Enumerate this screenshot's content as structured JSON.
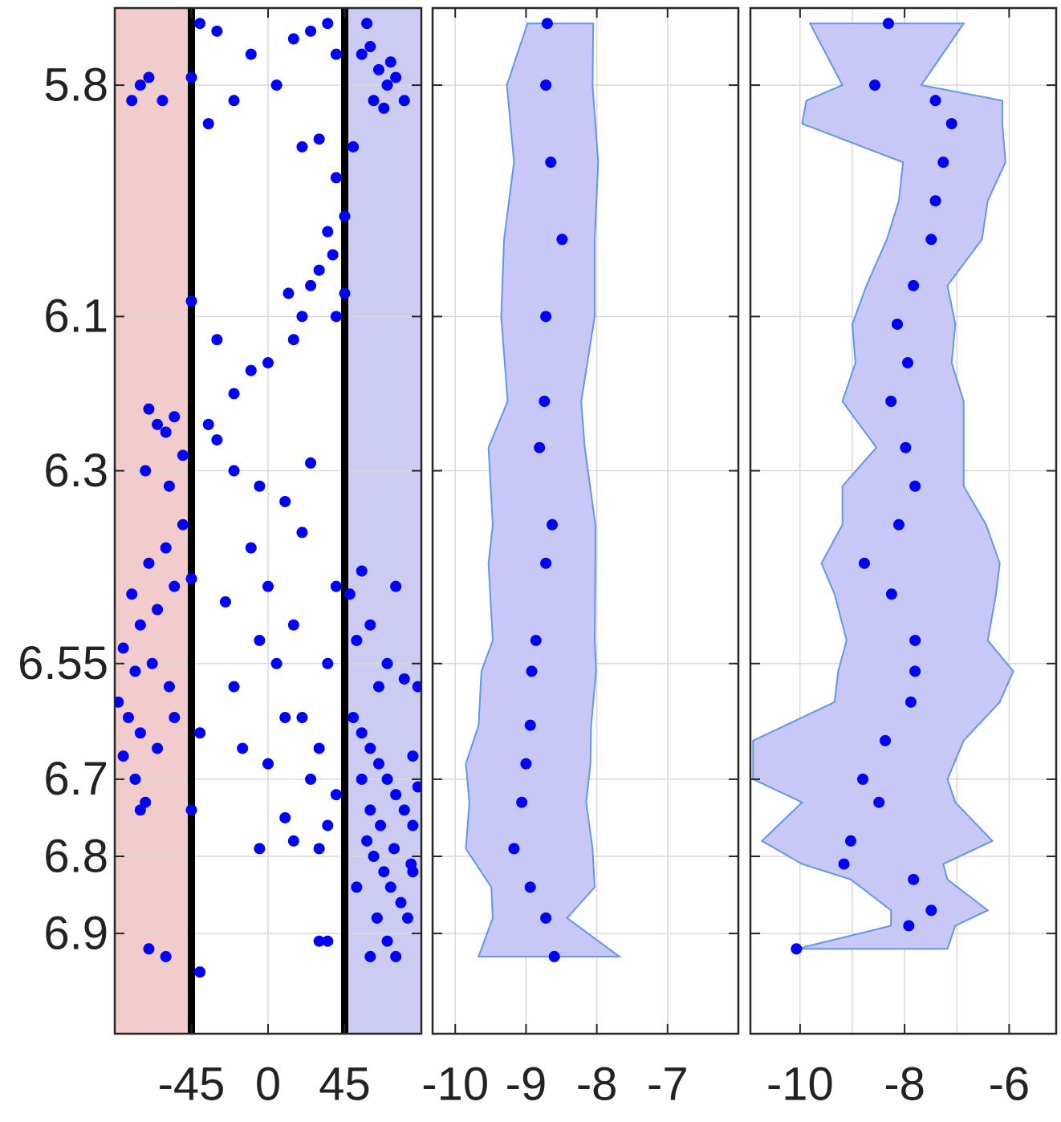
{
  "chart_data": [
    {
      "type": "scatter",
      "color": "#0000ff",
      "grid": true,
      "xlim": [
        -90,
        90
      ],
      "xticks": [
        -45,
        0,
        45
      ],
      "ylim": [
        5.7,
        7.03
      ],
      "yticks": [
        5.8,
        6.1,
        6.3,
        6.55,
        6.7,
        6.8,
        6.9
      ],
      "y_reversed": true,
      "shaded_regions": [
        {
          "from": -90,
          "to": -45,
          "color": "#f2cccc"
        },
        {
          "from": 45,
          "to": 90,
          "color": "#ccccf2"
        }
      ],
      "vlines": [
        -45,
        45
      ],
      "x": [
        60,
        65,
        70,
        62,
        75,
        68,
        55,
        80,
        58,
        72,
        -40,
        -30,
        -10,
        5,
        -20,
        -35,
        15,
        25,
        35,
        40,
        30,
        20,
        40,
        50,
        45,
        35,
        38,
        30,
        25,
        40,
        45,
        12,
        20,
        15,
        0,
        -10,
        -20,
        -35,
        -45,
        -75,
        -70,
        -80,
        -62,
        -30,
        -45,
        -70,
        -65,
        -60,
        -55,
        -72,
        -58,
        -50,
        -60,
        -70,
        -80,
        -75,
        -65,
        -55,
        -85,
        -78,
        -68,
        -58,
        -88,
        -82,
        -75,
        -65,
        -55,
        -78,
        -72,
        -75,
        -85,
        -70,
        -60,
        -50,
        -45,
        -30,
        -20,
        -5,
        10,
        20,
        -10,
        0,
        -25,
        15,
        -5,
        5,
        -20,
        10,
        -40,
        -15,
        0,
        20,
        30,
        25,
        10,
        -5,
        15,
        30,
        35,
        40,
        -45,
        -40,
        30,
        35,
        25,
        40,
        35,
        50,
        55,
        60,
        65,
        70,
        75,
        80,
        85,
        58,
        62,
        68,
        72,
        78,
        82,
        55,
        60,
        66,
        74,
        84,
        52,
        64,
        70,
        60,
        75,
        85,
        52,
        60,
        70,
        80,
        88,
        65,
        75,
        55,
        48,
        85,
        88
      ],
      "y": [
        5.75,
        5.78,
        5.8,
        5.82,
        5.79,
        5.83,
        5.76,
        5.82,
        5.72,
        5.77,
        5.72,
        5.73,
        5.76,
        5.8,
        5.82,
        5.85,
        5.74,
        5.73,
        5.72,
        5.76,
        5.87,
        5.88,
        5.92,
        5.88,
        5.97,
        5.99,
        6.02,
        6.04,
        6.06,
        6.1,
        6.07,
        6.07,
        6.1,
        6.13,
        6.16,
        6.17,
        6.2,
        6.24,
        5.79,
        5.8,
        5.79,
        5.82,
        5.82,
        6.13,
        6.08,
        6.22,
        6.24,
        6.25,
        6.23,
        6.3,
        6.32,
        6.28,
        6.4,
        6.42,
        6.46,
        6.5,
        6.48,
        6.45,
        6.53,
        6.56,
        6.55,
        6.58,
        6.6,
        6.62,
        6.64,
        6.66,
        6.62,
        6.7,
        6.73,
        6.74,
        6.67,
        6.92,
        6.93,
        6.37,
        6.44,
        6.26,
        6.3,
        6.32,
        6.34,
        6.38,
        6.4,
        6.45,
        6.47,
        6.5,
        6.52,
        6.55,
        6.58,
        6.62,
        6.64,
        6.66,
        6.68,
        6.62,
        6.66,
        6.7,
        6.75,
        6.79,
        6.78,
        6.79,
        6.76,
        6.72,
        6.74,
        6.95,
        6.91,
        6.91,
        6.29,
        6.45,
        6.55,
        6.62,
        6.64,
        6.66,
        6.68,
        6.7,
        6.72,
        6.74,
        6.76,
        6.78,
        6.8,
        6.82,
        6.84,
        6.86,
        6.88,
        6.7,
        6.74,
        6.76,
        6.79,
        6.81,
        6.84,
        6.88,
        6.91,
        6.93,
        6.93,
        6.67,
        6.52,
        6.5,
        6.55,
        6.57,
        6.58,
        6.58,
        6.45,
        6.43,
        6.46,
        6.82,
        6.71
      ]
    },
    {
      "type": "band",
      "color": "#0000ff",
      "band_color": "#c8c8f6",
      "band_edge": "#6495ed",
      "grid": true,
      "xlim": [
        -10.32,
        -6
      ],
      "xticks": [
        -10,
        -9,
        -8,
        -7
      ],
      "y": [
        5.72,
        5.8,
        5.9,
        6.0,
        6.1,
        6.21,
        6.27,
        6.37,
        6.42,
        6.52,
        6.56,
        6.63,
        6.68,
        6.73,
        6.79,
        6.84,
        6.88,
        6.93
      ],
      "x": [
        -8.7,
        -8.72,
        -8.65,
        -8.49,
        -8.72,
        -8.74,
        -8.81,
        -8.63,
        -8.72,
        -8.86,
        -8.92,
        -8.94,
        -9.0,
        -9.06,
        -9.17,
        -8.94,
        -8.72,
        -8.6
      ],
      "x_lower": [
        -8.98,
        -9.27,
        -9.17,
        -9.31,
        -9.35,
        -9.26,
        -9.53,
        -9.47,
        -9.53,
        -9.47,
        -9.63,
        -9.67,
        -9.85,
        -9.8,
        -9.85,
        -9.49,
        -9.47,
        -9.67
      ],
      "x_upper": [
        -8.05,
        -8.06,
        -7.98,
        -8.03,
        -8.03,
        -8.22,
        -8.17,
        -8.02,
        -8.02,
        -8.03,
        -8.01,
        -8.08,
        -8.09,
        -8.15,
        -8.06,
        -8.03,
        -8.42,
        -7.68
      ]
    },
    {
      "type": "band",
      "color": "#0000ff",
      "band_color": "#c8c8f6",
      "band_edge": "#6495ed",
      "grid": true,
      "xlim": [
        -10.95,
        -5.1
      ],
      "xticks": [
        -10,
        -8,
        -6
      ],
      "xminor": [
        -9,
        -7
      ],
      "y": [
        5.72,
        5.8,
        5.82,
        5.85,
        5.9,
        5.95,
        6.0,
        6.06,
        6.11,
        6.16,
        6.21,
        6.27,
        6.32,
        6.37,
        6.42,
        6.46,
        6.52,
        6.56,
        6.6,
        6.65,
        6.7,
        6.73,
        6.78,
        6.81,
        6.83,
        6.87,
        6.89,
        6.92
      ],
      "x": [
        -8.31,
        -8.57,
        -7.41,
        -7.1,
        -7.26,
        -7.41,
        -7.49,
        -7.83,
        -8.14,
        -7.94,
        -8.26,
        -7.98,
        -7.8,
        -8.11,
        -8.77,
        -8.25,
        -7.8,
        -7.8,
        -7.88,
        -8.37,
        -8.8,
        -8.49,
        -9.03,
        -9.16,
        -7.83,
        -7.49,
        -7.92,
        -10.07
      ],
      "x_lower": [
        -9.81,
        -9.19,
        -9.88,
        -9.96,
        -8.03,
        -8.11,
        -8.34,
        -8.73,
        -9.0,
        -8.94,
        -9.19,
        -8.54,
        -9.19,
        -9.19,
        -9.59,
        -9.34,
        -9.11,
        -9.27,
        -9.34,
        -10.9,
        -10.9,
        -9.96,
        -10.73,
        -9.96,
        -9.03,
        -8.26,
        -8.26,
        -10.07
      ],
      "x_upper": [
        -6.87,
        -7.68,
        -6.13,
        -6.13,
        -6.07,
        -6.41,
        -6.52,
        -7.18,
        -7.03,
        -7.1,
        -6.87,
        -6.87,
        -6.87,
        -6.44,
        -6.18,
        -6.25,
        -6.41,
        -5.92,
        -6.18,
        -6.87,
        -7.18,
        -7.03,
        -6.32,
        -7.26,
        -7.18,
        -6.41,
        -7.03,
        -7.18
      ]
    }
  ]
}
